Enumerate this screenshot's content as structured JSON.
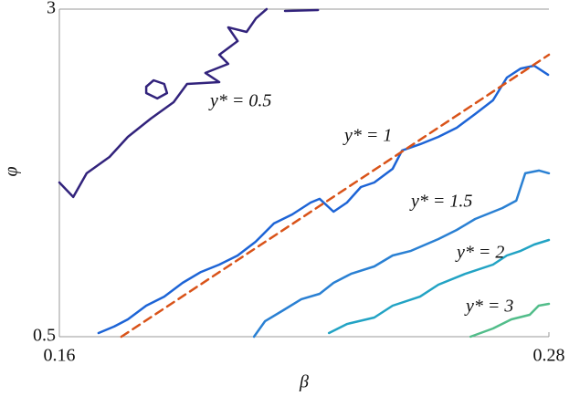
{
  "chart_data": {
    "type": "contour",
    "x_label": "β",
    "y_label": "φ",
    "xlim": [
      0.16,
      0.28
    ],
    "ylim": [
      0.5,
      3
    ],
    "xticks": [
      0.16,
      0.28
    ],
    "yticks": [
      0.5,
      3
    ],
    "series": [
      {
        "name": "y* = 0.5",
        "color": "#32237c",
        "x": [
          0.16,
          0.1634,
          0.1667,
          0.1723,
          0.1768,
          0.1824,
          0.188,
          0.1913,
          0.1992,
          0.1958,
          0.2014,
          0.1992,
          0.2037,
          0.2014,
          0.2059,
          0.2082,
          0.2108,
          null,
          0.2153,
          0.2234,
          null,
          0.1813,
          0.1831,
          0.1857,
          0.1864,
          0.184,
          0.1813,
          0.1813
        ],
        "y": [
          1.677,
          1.566,
          1.747,
          1.872,
          2.025,
          2.164,
          2.29,
          2.429,
          2.443,
          2.513,
          2.582,
          2.652,
          2.756,
          2.861,
          2.826,
          2.93,
          3.0,
          null,
          2.986,
          2.993,
          null,
          2.408,
          2.457,
          2.429,
          2.359,
          2.318,
          2.359,
          2.408
        ]
      },
      {
        "name": "y* = 1",
        "color": "#1d64d6",
        "x": [
          0.1696,
          0.1734,
          0.1768,
          0.1813,
          0.1857,
          0.1902,
          0.1947,
          0.1992,
          0.2037,
          0.2081,
          0.2126,
          0.2171,
          0.2216,
          0.2238,
          0.2272,
          0.2305,
          0.2339,
          0.2372,
          0.2417,
          0.244,
          0.2484,
          0.2529,
          0.2574,
          0.2619,
          0.2663,
          0.2697,
          0.2731,
          0.2764,
          0.2798
        ],
        "y": [
          0.528,
          0.577,
          0.632,
          0.737,
          0.806,
          0.911,
          0.994,
          1.05,
          1.12,
          1.224,
          1.364,
          1.433,
          1.524,
          1.552,
          1.454,
          1.524,
          1.642,
          1.677,
          1.781,
          1.921,
          1.969,
          2.025,
          2.095,
          2.199,
          2.304,
          2.478,
          2.547,
          2.568,
          2.499
        ]
      },
      {
        "name": "y* = 1.5",
        "color": "#2a80d3",
        "x": [
          0.2077,
          0.2104,
          0.2149,
          0.2193,
          0.2238,
          0.2272,
          0.2316,
          0.2372,
          0.2417,
          0.2462,
          0.2529,
          0.2574,
          0.2619,
          0.2686,
          0.272,
          0.2742,
          0.2776,
          0.28
        ],
        "y": [
          0.5,
          0.618,
          0.702,
          0.786,
          0.827,
          0.911,
          0.981,
          1.036,
          1.12,
          1.155,
          1.245,
          1.315,
          1.398,
          1.482,
          1.538,
          1.747,
          1.768,
          1.747
        ]
      },
      {
        "name": "y* = 2",
        "color": "#22a3c4",
        "x": [
          0.2261,
          0.2305,
          0.2372,
          0.2417,
          0.2484,
          0.2529,
          0.2596,
          0.2663,
          0.2697,
          0.2731,
          0.2764,
          0.28
        ],
        "y": [
          0.528,
          0.597,
          0.646,
          0.737,
          0.806,
          0.897,
          0.981,
          1.05,
          1.12,
          1.155,
          1.203,
          1.238
        ]
      },
      {
        "name": "y* = 3",
        "color": "#52bd8a",
        "x": [
          0.2608,
          0.2663,
          0.2708,
          0.2753,
          0.2775,
          0.28
        ],
        "y": [
          0.5,
          0.563,
          0.632,
          0.667,
          0.737,
          0.751
        ]
      },
      {
        "color": "#d95319",
        "dashed": true,
        "x": [
          0.1752,
          0.28
        ],
        "y": [
          0.5,
          2.652
        ]
      }
    ]
  }
}
